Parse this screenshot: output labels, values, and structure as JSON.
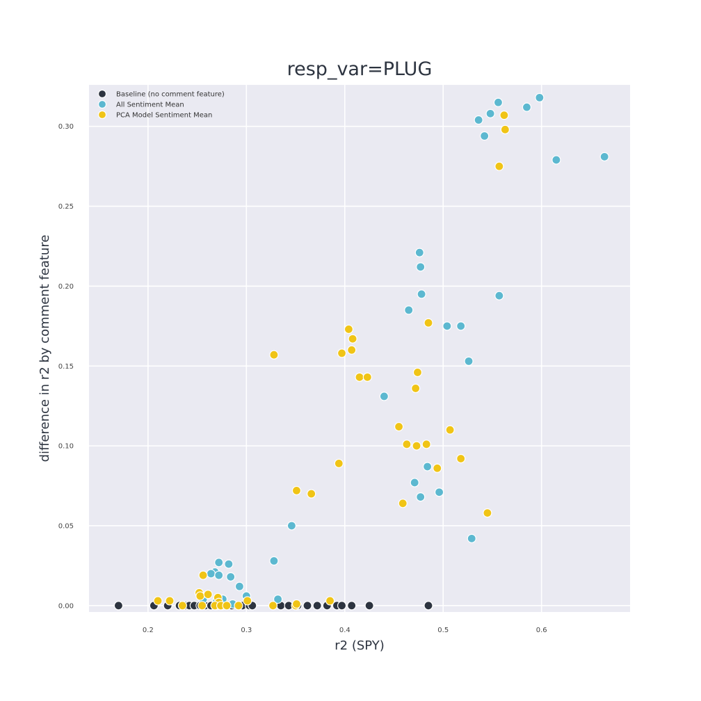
{
  "chart_data": {
    "type": "scatter",
    "title": "resp_var=PLUG",
    "xlabel": "r2 (SPY)",
    "ylabel": "difference in r2 by comment feature",
    "xlim": [
      0.14,
      0.69
    ],
    "ylim": [
      -0.004,
      0.326
    ],
    "xticks": [
      0.2,
      0.3,
      0.4,
      0.5,
      0.6
    ],
    "xtick_labels": [
      "0.2",
      "0.3",
      "0.4",
      "0.5",
      "0.6"
    ],
    "yticks": [
      0.0,
      0.05,
      0.1,
      0.15,
      0.2,
      0.25,
      0.3
    ],
    "ytick_labels": [
      "0.00",
      "0.05",
      "0.10",
      "0.15",
      "0.20",
      "0.25",
      "0.30"
    ],
    "grid": true,
    "legend_position": "top-left",
    "series": [
      {
        "name": "Baseline (no comment feature)",
        "color": "#2d3440",
        "points": [
          [
            0.17,
            0.0
          ],
          [
            0.206,
            0.0
          ],
          [
            0.22,
            0.0
          ],
          [
            0.232,
            0.0
          ],
          [
            0.238,
            0.0
          ],
          [
            0.242,
            0.0
          ],
          [
            0.247,
            0.0
          ],
          [
            0.253,
            0.0
          ],
          [
            0.258,
            0.0
          ],
          [
            0.264,
            0.0
          ],
          [
            0.27,
            0.0
          ],
          [
            0.276,
            0.0
          ],
          [
            0.285,
            0.0
          ],
          [
            0.296,
            0.0
          ],
          [
            0.303,
            0.0
          ],
          [
            0.306,
            0.0
          ],
          [
            0.335,
            0.0
          ],
          [
            0.343,
            0.0
          ],
          [
            0.352,
            0.0
          ],
          [
            0.362,
            0.0
          ],
          [
            0.372,
            0.0
          ],
          [
            0.382,
            0.0
          ],
          [
            0.392,
            0.0
          ],
          [
            0.397,
            0.0
          ],
          [
            0.407,
            0.0
          ],
          [
            0.425,
            0.0
          ],
          [
            0.485,
            0.0
          ]
        ]
      },
      {
        "name": "All Sentiment Mean",
        "color": "#5cb8d0",
        "points": [
          [
            0.598,
            0.318
          ],
          [
            0.556,
            0.315
          ],
          [
            0.585,
            0.312
          ],
          [
            0.548,
            0.308
          ],
          [
            0.536,
            0.304
          ],
          [
            0.542,
            0.294
          ],
          [
            0.615,
            0.279
          ],
          [
            0.664,
            0.281
          ],
          [
            0.476,
            0.221
          ],
          [
            0.477,
            0.212
          ],
          [
            0.478,
            0.195
          ],
          [
            0.557,
            0.194
          ],
          [
            0.465,
            0.185
          ],
          [
            0.504,
            0.175
          ],
          [
            0.518,
            0.175
          ],
          [
            0.526,
            0.153
          ],
          [
            0.44,
            0.131
          ],
          [
            0.484,
            0.087
          ],
          [
            0.471,
            0.077
          ],
          [
            0.477,
            0.068
          ],
          [
            0.496,
            0.071
          ],
          [
            0.529,
            0.042
          ],
          [
            0.346,
            0.05
          ],
          [
            0.328,
            0.028
          ],
          [
            0.272,
            0.027
          ],
          [
            0.282,
            0.026
          ],
          [
            0.268,
            0.021
          ],
          [
            0.264,
            0.02
          ],
          [
            0.272,
            0.019
          ],
          [
            0.284,
            0.018
          ],
          [
            0.293,
            0.012
          ],
          [
            0.3,
            0.006
          ],
          [
            0.276,
            0.004
          ],
          [
            0.332,
            0.004
          ],
          [
            0.256,
            0.004
          ],
          [
            0.27,
            0.003
          ],
          [
            0.286,
            0.001
          ]
        ]
      },
      {
        "name": "PCA Model Sentiment Mean",
        "color": "#f0c416",
        "points": [
          [
            0.562,
            0.307
          ],
          [
            0.563,
            0.298
          ],
          [
            0.557,
            0.275
          ],
          [
            0.485,
            0.177
          ],
          [
            0.404,
            0.173
          ],
          [
            0.408,
            0.167
          ],
          [
            0.407,
            0.16
          ],
          [
            0.397,
            0.158
          ],
          [
            0.328,
            0.157
          ],
          [
            0.474,
            0.146
          ],
          [
            0.415,
            0.143
          ],
          [
            0.423,
            0.143
          ],
          [
            0.472,
            0.136
          ],
          [
            0.455,
            0.112
          ],
          [
            0.507,
            0.11
          ],
          [
            0.463,
            0.101
          ],
          [
            0.473,
            0.1
          ],
          [
            0.483,
            0.101
          ],
          [
            0.518,
            0.092
          ],
          [
            0.394,
            0.089
          ],
          [
            0.494,
            0.086
          ],
          [
            0.351,
            0.072
          ],
          [
            0.366,
            0.07
          ],
          [
            0.459,
            0.064
          ],
          [
            0.545,
            0.058
          ],
          [
            0.256,
            0.019
          ],
          [
            0.252,
            0.008
          ],
          [
            0.253,
            0.006
          ],
          [
            0.261,
            0.007
          ],
          [
            0.271,
            0.005
          ],
          [
            0.21,
            0.003
          ],
          [
            0.222,
            0.003
          ],
          [
            0.272,
            0.002
          ],
          [
            0.301,
            0.003
          ],
          [
            0.385,
            0.003
          ],
          [
            0.235,
            0.0
          ],
          [
            0.255,
            0.0
          ],
          [
            0.268,
            0.0
          ],
          [
            0.274,
            0.0
          ],
          [
            0.28,
            0.0
          ],
          [
            0.292,
            0.0
          ],
          [
            0.327,
            0.0
          ],
          [
            0.35,
            0.0
          ],
          [
            0.351,
            0.001
          ]
        ]
      }
    ]
  }
}
